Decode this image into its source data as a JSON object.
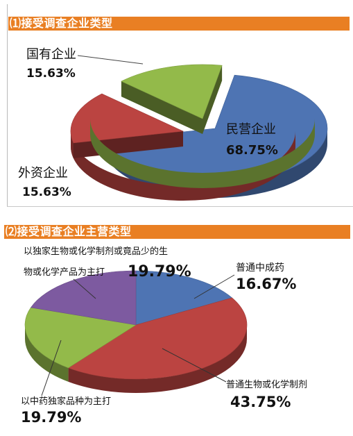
{
  "charts": {
    "chart1": {
      "title": "⑴接受调查企业类型",
      "chart_data": {
        "type": "pie",
        "title": "⑴接受调查企业类型",
        "series": [
          {
            "label": "民营企业",
            "value": 68.75,
            "value_text": "68.75%",
            "color": "#4e74b3"
          },
          {
            "label": "外资企业",
            "value": 15.63,
            "value_text": "15.63%",
            "color": "#bb4441"
          },
          {
            "label": "国有企业",
            "value": 15.63,
            "value_text": "15.63%",
            "color": "#93ba4a"
          }
        ]
      }
    },
    "chart2": {
      "title": "⑵接受调查企业主营类型",
      "chart_data": {
        "type": "pie",
        "title": "⑵接受调查企业主营类型",
        "series": [
          {
            "label": "普通中成药",
            "value": 16.67,
            "value_text": "16.67%",
            "color": "#4e74b3"
          },
          {
            "label": "普通生物或化学制剂",
            "value": 43.75,
            "value_text": "43.75%",
            "color": "#bb4441"
          },
          {
            "label": "以中药独家品种为主打",
            "value": 19.79,
            "value_text": "19.79%",
            "color": "#93ba4a"
          },
          {
            "label": "以独家生物或化学制剂或竟品少的生物或化学产品为主打",
            "label_lines": [
              "以独家生物或化学制剂或竟品少的生",
              "物或化学产品为主打"
            ],
            "value": 19.79,
            "value_text": "19.79%",
            "color": "#7d5aa0"
          }
        ]
      }
    }
  }
}
